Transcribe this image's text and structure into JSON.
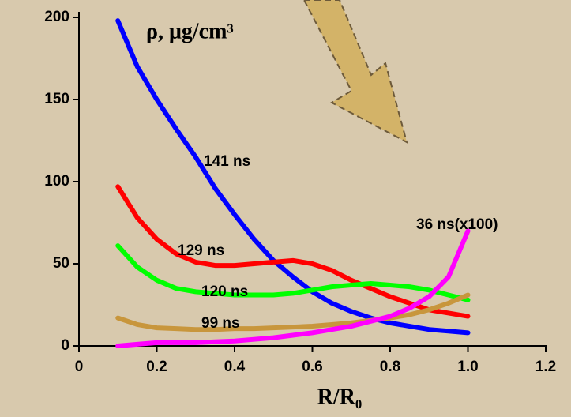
{
  "chart_data": {
    "type": "line",
    "y_label": "ρ, μg/cm³",
    "x_label": "R/R₀",
    "x": [
      0.1,
      0.15,
      0.2,
      0.25,
      0.3,
      0.35,
      0.4,
      0.45,
      0.5,
      0.55,
      0.6,
      0.65,
      0.7,
      0.75,
      0.8,
      0.85,
      0.9,
      0.95,
      1.0
    ],
    "series": [
      {
        "name": "141 ns",
        "color": "#0000ff",
        "values": [
          198,
          170,
          150,
          132,
          115,
          96,
          80,
          65,
          52,
          42,
          33,
          26,
          21,
          17,
          14,
          12,
          10,
          9,
          8
        ]
      },
      {
        "name": "129 ns",
        "color": "#ff0000",
        "values": [
          97,
          78,
          65,
          56,
          51,
          49,
          49,
          50,
          51,
          52,
          50,
          46,
          40,
          35,
          30,
          26,
          22,
          20,
          18
        ]
      },
      {
        "name": "120 ns",
        "color": "#00ff00",
        "values": [
          61,
          48,
          40,
          35,
          33,
          32,
          31,
          31,
          31,
          32,
          34,
          36,
          37,
          38,
          37,
          36,
          34,
          31,
          28
        ]
      },
      {
        "name": "99 ns",
        "color": "#c8963c",
        "values": [
          17,
          13,
          11,
          10.5,
          10,
          10,
          10.5,
          10.5,
          11,
          11.5,
          12,
          13,
          14,
          15.5,
          17,
          19,
          22,
          26,
          31
        ]
      },
      {
        "name": "36 ns(x100)",
        "color": "#ff00ff",
        "values": [
          0,
          1,
          2,
          2,
          2,
          2.5,
          3,
          4,
          5,
          6.5,
          8,
          10,
          12,
          15,
          18,
          23,
          30,
          42,
          70
        ]
      }
    ],
    "xlim": [
      0,
      1.2
    ],
    "ylim": [
      0,
      200
    ],
    "xticks": [
      0,
      0.2,
      0.4,
      0.6,
      0.8,
      {
        "value": 1,
        "label": "1.0"
      },
      1.2
    ],
    "yticks": [
      0,
      50,
      100,
      150,
      200
    ]
  }
}
